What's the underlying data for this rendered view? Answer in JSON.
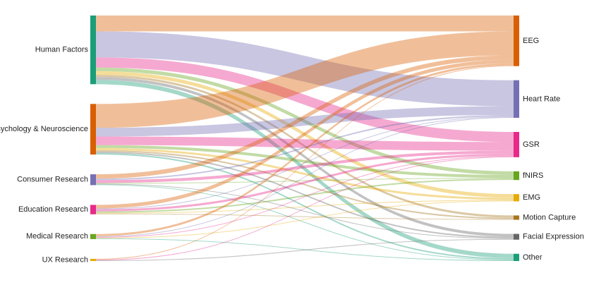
{
  "chart_data": {
    "type": "sankey",
    "nodes": [
      {
        "name": "Human Factors",
        "color": "#1b9e77"
      },
      {
        "name": "Psychology & Neuroscience",
        "color": "#d95f02"
      },
      {
        "name": "Consumer Research",
        "color": "#7570b3"
      },
      {
        "name": "Education Research",
        "color": "#e7298a"
      },
      {
        "name": "Medical Research",
        "color": "#66a61e"
      },
      {
        "name": "UX Research",
        "color": "#e6ab02"
      },
      {
        "name": "EEG",
        "color": "#d95f02"
      },
      {
        "name": "Heart Rate",
        "color": "#7570b3"
      },
      {
        "name": "GSR",
        "color": "#e7298a"
      },
      {
        "name": "fNIRS",
        "color": "#66a61e"
      },
      {
        "name": "EMG",
        "color": "#e6ab02"
      },
      {
        "name": "Motion Capture",
        "color": "#a6761d"
      },
      {
        "name": "Facial Expression",
        "color": "#666666"
      },
      {
        "name": "Other",
        "color": "#1b9e77"
      }
    ],
    "links": [
      {
        "source": 0,
        "target": 6,
        "value": 22
      },
      {
        "source": 0,
        "target": 7,
        "value": 36
      },
      {
        "source": 0,
        "target": 8,
        "value": 14
      },
      {
        "source": 0,
        "target": 9,
        "value": 5
      },
      {
        "source": 0,
        "target": 10,
        "value": 5
      },
      {
        "source": 0,
        "target": 11,
        "value": 3
      },
      {
        "source": 0,
        "target": 12,
        "value": 4
      },
      {
        "source": 0,
        "target": 13,
        "value": 6
      },
      {
        "source": 1,
        "target": 6,
        "value": 33
      },
      {
        "source": 1,
        "target": 7,
        "value": 12
      },
      {
        "source": 1,
        "target": 8,
        "value": 12
      },
      {
        "source": 1,
        "target": 9,
        "value": 4
      },
      {
        "source": 1,
        "target": 10,
        "value": 3
      },
      {
        "source": 1,
        "target": 11,
        "value": 2
      },
      {
        "source": 1,
        "target": 12,
        "value": 2
      },
      {
        "source": 1,
        "target": 13,
        "value": 2
      },
      {
        "source": 2,
        "target": 6,
        "value": 6
      },
      {
        "source": 2,
        "target": 7,
        "value": 2
      },
      {
        "source": 2,
        "target": 8,
        "value": 4
      },
      {
        "source": 2,
        "target": 9,
        "value": 1
      },
      {
        "source": 2,
        "target": 12,
        "value": 1
      },
      {
        "source": 2,
        "target": 13,
        "value": 1
      },
      {
        "source": 3,
        "target": 6,
        "value": 5
      },
      {
        "source": 3,
        "target": 7,
        "value": 1
      },
      {
        "source": 3,
        "target": 8,
        "value": 3
      },
      {
        "source": 3,
        "target": 9,
        "value": 2
      },
      {
        "source": 3,
        "target": 10,
        "value": 1
      },
      {
        "source": 3,
        "target": 11,
        "value": 1
      },
      {
        "source": 4,
        "target": 6,
        "value": 3
      },
      {
        "source": 4,
        "target": 7,
        "value": 1
      },
      {
        "source": 4,
        "target": 8,
        "value": 1
      },
      {
        "source": 4,
        "target": 10,
        "value": 1
      },
      {
        "source": 4,
        "target": 13,
        "value": 1
      },
      {
        "source": 5,
        "target": 6,
        "value": 1
      },
      {
        "source": 5,
        "target": 8,
        "value": 1
      },
      {
        "source": 5,
        "target": 12,
        "value": 1
      }
    ]
  }
}
